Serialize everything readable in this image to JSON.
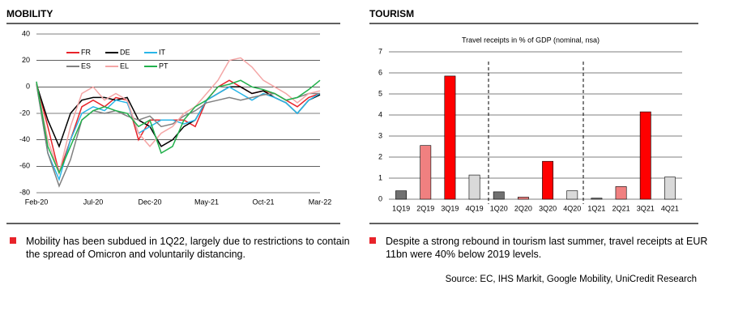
{
  "chart_data": [
    {
      "type": "line",
      "title": "MOBILITY",
      "categories": [
        "Feb-20",
        null,
        null,
        null,
        null,
        "Jul-20",
        null,
        null,
        null,
        null,
        "Dec-20",
        null,
        null,
        null,
        null,
        "May-21",
        null,
        null,
        null,
        null,
        "Oct-21",
        null,
        null,
        null,
        null,
        "Mar-22"
      ],
      "series": [
        {
          "name": "FR",
          "color": "#e8232a",
          "values": [
            3,
            -30,
            -65,
            -40,
            -15,
            -10,
            -15,
            -8,
            -10,
            -40,
            -25,
            -25,
            -25,
            -25,
            -30,
            -10,
            0,
            5,
            0,
            -5,
            -3,
            -5,
            -10,
            -15,
            -8,
            -5
          ]
        },
        {
          "name": "DE",
          "color": "#000000",
          "values": [
            2,
            -25,
            -45,
            -20,
            -10,
            -8,
            -8,
            -10,
            -8,
            -25,
            -30,
            -45,
            -40,
            -30,
            -25,
            -10,
            -5,
            0,
            0,
            -5,
            -3,
            -8,
            -12,
            -20,
            -10,
            -6
          ]
        },
        {
          "name": "IT",
          "color": "#29b6e8",
          "values": [
            3,
            -50,
            -70,
            -40,
            -20,
            -15,
            -18,
            -10,
            -12,
            -35,
            -30,
            -25,
            -25,
            -28,
            -25,
            -10,
            -5,
            0,
            -5,
            -10,
            -5,
            -8,
            -12,
            -20,
            -10,
            -5
          ]
        },
        {
          "name": "ES",
          "color": "#808080",
          "values": [
            2,
            -50,
            -75,
            -55,
            -25,
            -18,
            -20,
            -18,
            -22,
            -25,
            -22,
            -30,
            -28,
            -22,
            -18,
            -12,
            -10,
            -8,
            -10,
            -8,
            -6,
            -5,
            -10,
            -8,
            -5,
            -5
          ]
        },
        {
          "name": "EL",
          "color": "#f4a6a6",
          "values": [
            3,
            -40,
            -65,
            -30,
            -5,
            0,
            -10,
            -5,
            -10,
            -35,
            -45,
            -35,
            -30,
            -20,
            -15,
            -5,
            5,
            20,
            22,
            15,
            5,
            0,
            -5,
            -12,
            -5,
            -3
          ]
        },
        {
          "name": "PT",
          "color": "#22b14c",
          "values": [
            4,
            -45,
            -65,
            -45,
            -25,
            -18,
            -15,
            -18,
            -20,
            -30,
            -25,
            -50,
            -45,
            -25,
            -15,
            -10,
            0,
            2,
            5,
            0,
            -2,
            -5,
            -10,
            -8,
            -2,
            5
          ]
        }
      ],
      "ylim": [
        -80,
        40
      ],
      "yticks": [
        -80,
        -60,
        -40,
        -20,
        0,
        20,
        40
      ],
      "grid": true,
      "legend": "top-left"
    },
    {
      "type": "bar",
      "title": "TOURISM",
      "subtitle": "Travel receipts  in % of GDP (nominal, nsa)",
      "categories": [
        "1Q19",
        "2Q19",
        "3Q19",
        "4Q19",
        "1Q20",
        "2Q20",
        "3Q20",
        "4Q20",
        "1Q21",
        "2Q21",
        "3Q21",
        "4Q21"
      ],
      "values": [
        0.4,
        2.55,
        5.85,
        1.15,
        0.35,
        0.1,
        1.8,
        0.4,
        0.05,
        0.6,
        4.15,
        1.05
      ],
      "colors": [
        "#707070",
        "#f08080",
        "#ff0000",
        "#d9d9d9",
        "#707070",
        "#f08080",
        "#ff0000",
        "#d9d9d9",
        "#707070",
        "#f08080",
        "#ff0000",
        "#d9d9d9"
      ],
      "ylim": [
        0,
        7
      ],
      "yticks": [
        0,
        1,
        2,
        3,
        4,
        5,
        6,
        7
      ],
      "grid": true
    }
  ],
  "notes": [
    "Mobility has been subdued in 1Q22, largely due to restrictions to contain the spread of Omicron and voluntarily distancing.",
    "Despite a strong rebound in tourism last summer, travel receipts at EUR 11bn were 40% below 2019 levels."
  ],
  "source": "Source: EC, IHS Markit, Google Mobility, UniCredit Research"
}
